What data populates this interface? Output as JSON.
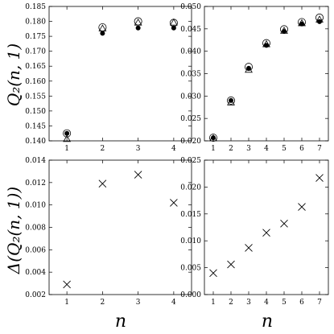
{
  "figure": {
    "ylabel_top": "Q₂(n, 1)",
    "ylabel_bottom": "Δ(Q₂(n, 1))",
    "xlabel": "n"
  },
  "chart_data": [
    {
      "type": "scatter",
      "panel": "top-left",
      "xlim": [
        0.5,
        4.5
      ],
      "ylim": [
        0.14,
        0.185
      ],
      "xticks": [
        1,
        2,
        3,
        4
      ],
      "yticks": [
        0.14,
        0.145,
        0.15,
        0.155,
        0.16,
        0.165,
        0.17,
        0.175,
        0.18,
        0.185
      ],
      "ytick_labels": [
        "0.140",
        "0.145",
        "0.150",
        "0.155",
        "0.160",
        "0.165",
        "0.170",
        "0.175",
        "0.180",
        "0.185"
      ],
      "series": [
        {
          "marker": "triangle-open",
          "x": [
            1,
            2,
            3,
            4
          ],
          "y": [
            0.1405,
            0.1775,
            0.1795,
            0.1795
          ]
        },
        {
          "marker": "circle-open",
          "x": [
            1,
            2,
            3,
            4
          ],
          "y": [
            0.1425,
            0.178,
            0.18,
            0.1795
          ]
        },
        {
          "marker": "circle-filled",
          "x": [
            1,
            2,
            3,
            4
          ],
          "y": [
            0.1425,
            0.176,
            0.1778,
            0.1778
          ]
        }
      ]
    },
    {
      "type": "scatter",
      "panel": "top-right",
      "xlim": [
        0.5,
        7.5
      ],
      "ylim": [
        0.02,
        0.05
      ],
      "xticks": [
        1,
        2,
        3,
        4,
        5,
        6,
        7
      ],
      "yticks": [
        0.02,
        0.025,
        0.03,
        0.035,
        0.04,
        0.045,
        0.05
      ],
      "ytick_labels": [
        "0.020",
        "0.025",
        "0.030",
        "0.035",
        "0.040",
        "0.045",
        "0.050"
      ],
      "series": [
        {
          "marker": "triangle-open",
          "x": [
            1,
            2,
            3,
            4,
            5,
            6,
            7
          ],
          "y": [
            0.0205,
            0.0285,
            0.0358,
            0.0415,
            0.0445,
            0.0462,
            0.047
          ]
        },
        {
          "marker": "circle-open",
          "x": [
            1,
            2,
            3,
            4,
            5,
            6,
            7
          ],
          "y": [
            0.0207,
            0.029,
            0.0365,
            0.0418,
            0.0449,
            0.0465,
            0.0475
          ]
        },
        {
          "marker": "circle-filled",
          "x": [
            1,
            2,
            3,
            4,
            5,
            6,
            7
          ],
          "y": [
            0.0207,
            0.029,
            0.0362,
            0.0413,
            0.0444,
            0.0461,
            0.0466
          ]
        }
      ]
    },
    {
      "type": "scatter",
      "panel": "bottom-left",
      "xlim": [
        0.5,
        4.5
      ],
      "ylim": [
        0.002,
        0.014
      ],
      "xticks": [
        1,
        2,
        3,
        4
      ],
      "yticks": [
        0.002,
        0.004,
        0.006,
        0.008,
        0.01,
        0.012,
        0.014
      ],
      "ytick_labels": [
        "0.002",
        "0.004",
        "0.006",
        "0.008",
        "0.010",
        "0.012",
        "0.014"
      ],
      "series": [
        {
          "marker": "cross",
          "x": [
            1,
            2,
            3,
            4
          ],
          "y": [
            0.0029,
            0.0119,
            0.0127,
            0.0102
          ]
        }
      ]
    },
    {
      "type": "scatter",
      "panel": "bottom-right",
      "xlim": [
        0.5,
        7.5
      ],
      "ylim": [
        0.0,
        0.025
      ],
      "xticks": [
        1,
        2,
        3,
        4,
        5,
        6,
        7
      ],
      "yticks": [
        0.0,
        0.005,
        0.01,
        0.015,
        0.02,
        0.025
      ],
      "ytick_labels": [
        "0.000",
        "0.005",
        "0.010",
        "0.015",
        "0.020",
        "0.025"
      ],
      "series": [
        {
          "marker": "cross",
          "x": [
            1,
            2,
            3,
            4,
            5,
            6,
            7
          ],
          "y": [
            0.004,
            0.0056,
            0.0087,
            0.0115,
            0.0132,
            0.0163,
            0.0217
          ]
        }
      ]
    }
  ]
}
